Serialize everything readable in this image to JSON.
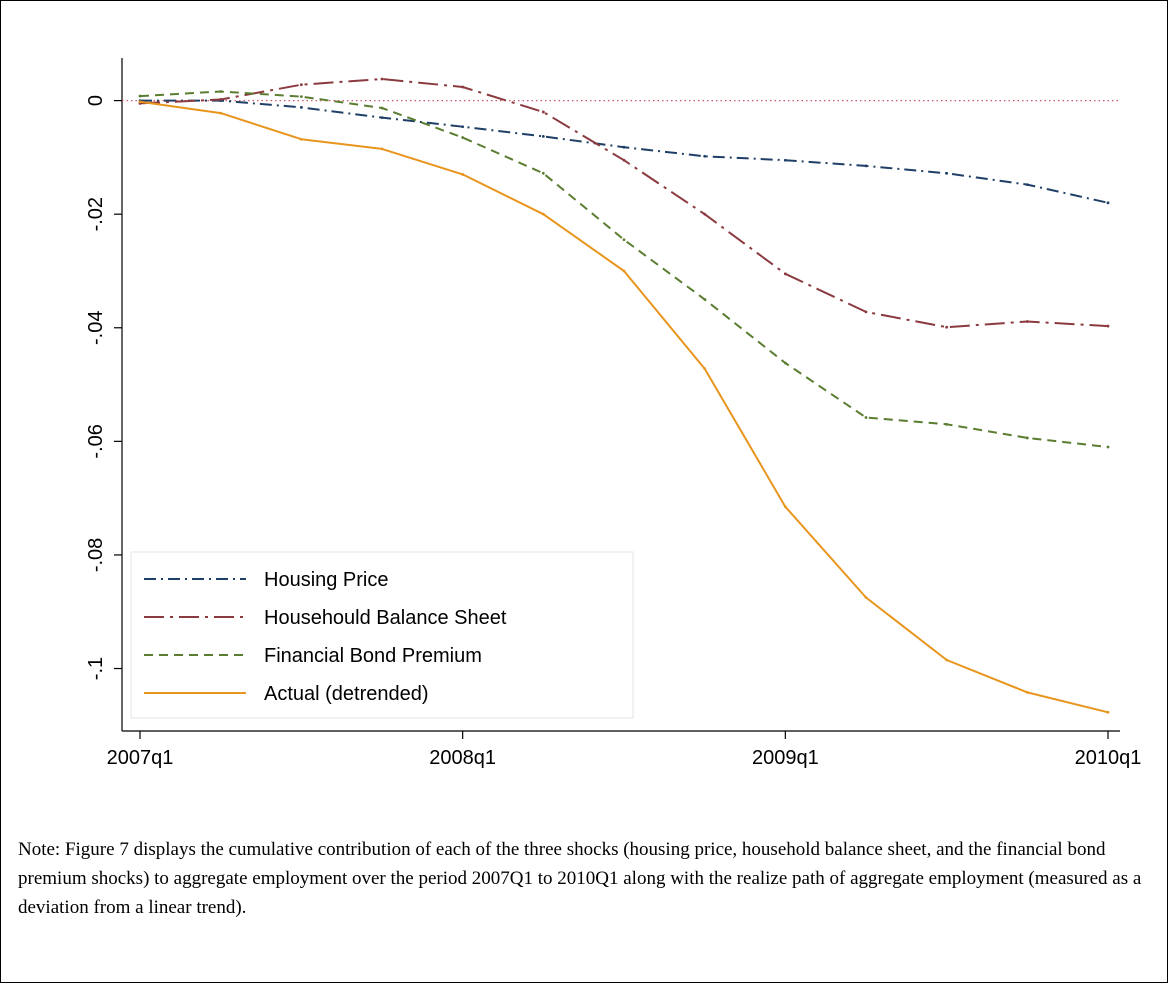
{
  "chart_data": {
    "type": "line",
    "x": [
      "2007q1",
      "2007q2",
      "2007q3",
      "2007q4",
      "2008q1",
      "2008q2",
      "2008q3",
      "2008q4",
      "2009q1",
      "2009q2",
      "2009q3",
      "2009q4",
      "2010q1"
    ],
    "x_tick_labels": [
      "2007q1",
      "2008q1",
      "2009q1",
      "2010q1"
    ],
    "y_ticks": [
      0,
      -0.02,
      -0.04,
      -0.06,
      -0.08,
      -0.1
    ],
    "y_tick_labels": [
      "0",
      "-.02",
      "-.04",
      "-.06",
      "-.08",
      "-.1"
    ],
    "ylim": [
      -0.111,
      0.0075
    ],
    "reference_line": 0,
    "grid": false,
    "legend_position": "bottom-left",
    "series": [
      {
        "name": "Housing Price",
        "color": "#1f3f66",
        "dash": "dash-dot",
        "values": [
          0.0,
          0.0,
          -0.0012,
          -0.003,
          -0.0046,
          -0.0063,
          -0.0082,
          -0.0098,
          -0.0105,
          -0.0115,
          -0.0128,
          -0.0148,
          -0.018
        ]
      },
      {
        "name": "Househould Balance Sheet",
        "color": "#8b3a3f",
        "dash": "long-dash-dot",
        "values": [
          -0.0005,
          0.0002,
          0.0028,
          0.0038,
          0.0024,
          -0.002,
          -0.0105,
          -0.02,
          -0.0305,
          -0.0372,
          -0.0399,
          -0.0389,
          -0.0397
        ]
      },
      {
        "name": "Financial Bond Premium",
        "color": "#5a7d30",
        "dash": "dash",
        "values": [
          0.0008,
          0.0016,
          0.0007,
          -0.0013,
          -0.0065,
          -0.0128,
          -0.0245,
          -0.035,
          -0.0462,
          -0.0558,
          -0.057,
          -0.0594,
          -0.061
        ]
      },
      {
        "name": "Actual (detrended)",
        "color": "#e8951e",
        "dash": "solid",
        "values": [
          -0.0002,
          -0.0022,
          -0.0068,
          -0.0085,
          -0.013,
          -0.02,
          -0.03,
          -0.0472,
          -0.0715,
          -0.0875,
          -0.0985,
          -0.1042,
          -0.1077
        ]
      }
    ]
  },
  "note": {
    "text": "Note: Figure 7 displays the cumulative contribution of each of the three shocks (housing price, household balance sheet, and the financial bond premium shocks) to aggregate employment over the period 2007Q1 to 2010Q1 along with the realize path of aggregate employment (measured as a deviation from a linear trend)."
  }
}
